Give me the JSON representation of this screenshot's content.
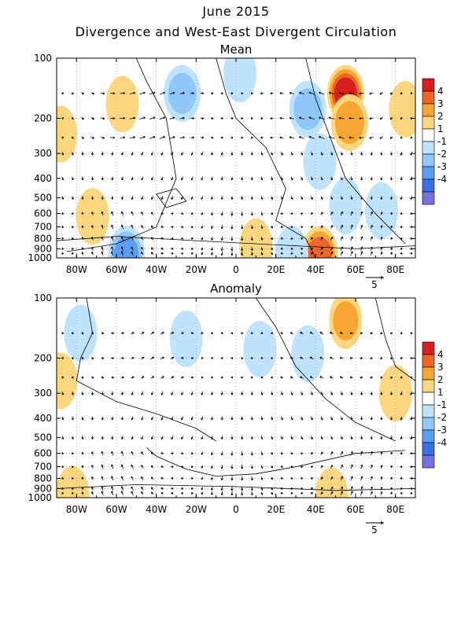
{
  "page": {
    "title": "June 2015",
    "subtitle": "Divergence and West-East Divergent Circulation"
  },
  "chart_data": [
    {
      "type": "heatmap",
      "title": "Mean",
      "x_ticks": [
        "80W",
        "60W",
        "40W",
        "20W",
        "0",
        "20E",
        "40E",
        "60E",
        "80E"
      ],
      "x_tick_lon": [
        -80,
        -60,
        -40,
        -20,
        0,
        20,
        40,
        60,
        80
      ],
      "xlim": [
        -90,
        90
      ],
      "y_ticks": [
        "100",
        "200",
        "300",
        "400",
        "500",
        "600",
        "700",
        "800",
        "900",
        "1000"
      ],
      "y_tick_p": [
        100,
        200,
        300,
        400,
        500,
        600,
        700,
        800,
        900,
        1000
      ],
      "ylim": [
        100,
        1000
      ],
      "y_scale": "log",
      "vector_reference": "5",
      "colorbar": {
        "labels": [
          "4",
          "3",
          "2",
          "1",
          "-1",
          "-2",
          "-3",
          "-4"
        ],
        "colors": [
          "#d91e1e",
          "#f06428",
          "#f8a532",
          "#fcd77f",
          "#ffffff",
          "#bfe3fc",
          "#8fc8f8",
          "#5a9ef5",
          "#3c6fe6",
          "#7a6fe0"
        ]
      },
      "shaded_regions": [
        {
          "lon": 55,
          "p": 150,
          "value": 4.2
        },
        {
          "lon": 57,
          "p": 210,
          "value": 2.5
        },
        {
          "lon": -57,
          "p": 170,
          "value": 1.6
        },
        {
          "lon": 85,
          "p": 180,
          "value": 1.8
        },
        {
          "lon": -88,
          "p": 240,
          "value": 1.3
        },
        {
          "lon": -27,
          "p": 150,
          "value": -2.2
        },
        {
          "lon": 36,
          "p": 180,
          "value": -2.3
        },
        {
          "lon": 42,
          "p": 330,
          "value": -1.8
        },
        {
          "lon": 2,
          "p": 120,
          "value": -1.4
        },
        {
          "lon": -72,
          "p": 620,
          "value": 1.5
        },
        {
          "lon": 42,
          "p": 960,
          "value": 3.2
        },
        {
          "lon": 10,
          "p": 880,
          "value": 1.3
        },
        {
          "lon": -55,
          "p": 960,
          "value": -3.2
        },
        {
          "lon": 28,
          "p": 960,
          "value": -1.3
        },
        {
          "lon": 55,
          "p": 550,
          "value": -1.4
        },
        {
          "lon": 73,
          "p": 580,
          "value": -1.3
        }
      ]
    },
    {
      "type": "heatmap",
      "title": "Anomaly",
      "x_ticks": [
        "80W",
        "60W",
        "40W",
        "20W",
        "0",
        "20E",
        "40E",
        "60E",
        "80E"
      ],
      "x_tick_lon": [
        -80,
        -60,
        -40,
        -20,
        0,
        20,
        40,
        60,
        80
      ],
      "xlim": [
        -90,
        90
      ],
      "y_ticks": [
        "100",
        "200",
        "300",
        "400",
        "500",
        "600",
        "700",
        "800",
        "900",
        "1000"
      ],
      "y_tick_p": [
        100,
        200,
        300,
        400,
        500,
        600,
        700,
        800,
        900,
        1000
      ],
      "ylim": [
        100,
        1000
      ],
      "y_scale": "log",
      "vector_reference": "5",
      "colorbar": {
        "labels": [
          "4",
          "3",
          "2",
          "1",
          "-1",
          "-2",
          "-3",
          "-4"
        ],
        "colors": [
          "#d91e1e",
          "#f06428",
          "#f8a532",
          "#fcd77f",
          "#ffffff",
          "#bfe3fc",
          "#8fc8f8",
          "#5a9ef5",
          "#3c6fe6",
          "#7a6fe0"
        ]
      },
      "shaded_regions": [
        {
          "lon": 55,
          "p": 130,
          "value": 2.0
        },
        {
          "lon": -78,
          "p": 150,
          "value": -1.6
        },
        {
          "lon": -25,
          "p": 160,
          "value": -1.5
        },
        {
          "lon": 12,
          "p": 180,
          "value": -1.4
        },
        {
          "lon": 36,
          "p": 190,
          "value": -1.3
        },
        {
          "lon": 80,
          "p": 300,
          "value": 1.3
        },
        {
          "lon": -88,
          "p": 260,
          "value": 1.2
        },
        {
          "lon": -82,
          "p": 960,
          "value": 1.2
        },
        {
          "lon": 48,
          "p": 980,
          "value": 1.3
        }
      ]
    }
  ]
}
